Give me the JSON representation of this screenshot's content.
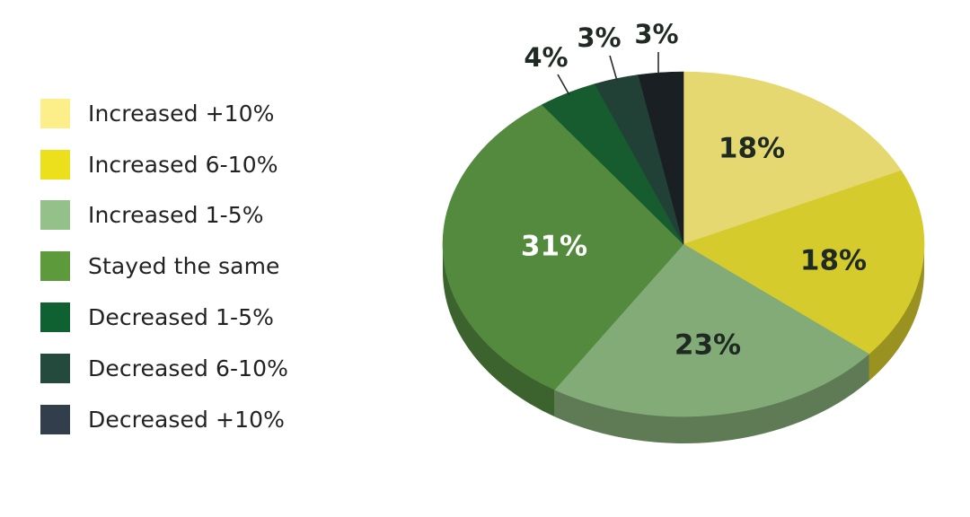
{
  "chart_data": {
    "type": "pie",
    "title": "",
    "legend_position": "left",
    "slices": [
      {
        "label": "Increased +10%",
        "value": 18,
        "value_label": "18%",
        "color": "#E6D871",
        "legend_color": "#FCEF8A",
        "label_color": "#1E2A22"
      },
      {
        "label": "Increased 6-10%",
        "value": 18,
        "value_label": "18%",
        "color": "#D5CB2C",
        "legend_color": "#ECE01C",
        "label_color": "#1E2A22"
      },
      {
        "label": "Increased 1-5%",
        "value": 23,
        "value_label": "23%",
        "color": "#83AB78",
        "legend_color": "#93C189",
        "label_color": "#1E2A22"
      },
      {
        "label": "Stayed the same",
        "value": 31,
        "value_label": "31%",
        "color": "#538A3E",
        "legend_color": "#5C9A3C",
        "label_color": "#FFFFFF"
      },
      {
        "label": "Decreased 1-5%",
        "value": 4,
        "value_label": "4%",
        "color": "#165C2E",
        "legend_color": "#0F6131",
        "label_color": "#1E2A22"
      },
      {
        "label": "Decreased 6-10%",
        "value": 3,
        "value_label": "3%",
        "color": "#224136",
        "legend_color": "#244A3D",
        "label_color": "#1E2A22"
      },
      {
        "label": "Decreased +10%",
        "value": 3,
        "value_label": "3%",
        "color": "#1A1F24",
        "legend_color": "#323E4B",
        "label_color": "#1E2A22"
      }
    ]
  }
}
